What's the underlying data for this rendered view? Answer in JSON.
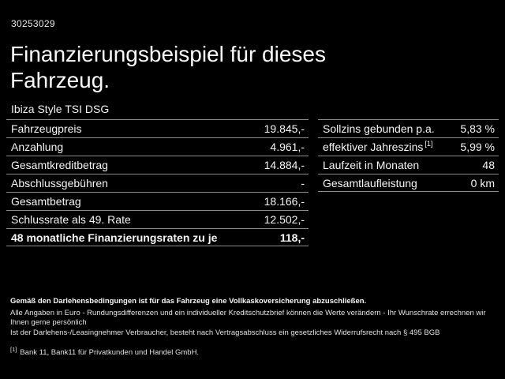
{
  "header": {
    "id_number": "30253029",
    "title_line1": "Finanzierungsbeispiel für dieses",
    "title_line2": "Fahrzeug.",
    "subtitle": "Ibiza Style TSI DSG"
  },
  "left_table": {
    "rows": [
      {
        "label": "Fahrzeugpreis",
        "value": "19.845,-"
      },
      {
        "label": "Anzahlung",
        "value": "4.961,-"
      },
      {
        "label": "Gesamtkreditbetrag",
        "value": "14.884,-"
      },
      {
        "label": "Abschlussgebühren",
        "value": "-"
      },
      {
        "label": "Gesamtbetrag",
        "value": "18.166,-"
      },
      {
        "label": "Schlussrate als 49. Rate",
        "value": "12.502,-"
      },
      {
        "label": "48 monatliche Finanzierungsraten zu je",
        "value": "118,-"
      }
    ]
  },
  "right_table": {
    "rows": [
      {
        "label": "Sollzins gebunden p.a.",
        "sup": "",
        "value": "5,83 %"
      },
      {
        "label": "effektiver Jahreszins",
        "sup": "[1]",
        "value": "5,99 %"
      },
      {
        "label": "Laufzeit in Monaten",
        "sup": "",
        "value": "48"
      },
      {
        "label": "Gesamtlaufleistung",
        "sup": "",
        "value": "0 km"
      }
    ]
  },
  "footer": {
    "bold_line": "Gemäß den Darlehensbedingungen ist für das Fahrzeug eine Vollkaskoversicherung abzuschließen.",
    "line2": "Alle Angaben in Euro - Rundungsdifferenzen und ein individueller Kreditschutzbrief können die Werte verändern - Ihr Wunschrate errechnen wir Ihnen gerne persönlich",
    "line3": "Ist der Darlehens-/Leasingnehmer Verbraucher, besteht nach Vertragsabschluss ein gesetzliches Widerrufsrecht nach § 495 BGB",
    "footnote_marker": "[1]",
    "footnote_text": "Bank 11, Bank11 für Privatkunden und Handel GmbH."
  },
  "colors": {
    "background": "#000000",
    "text": "#f5f5f5",
    "divider": "#8c8c8c"
  }
}
